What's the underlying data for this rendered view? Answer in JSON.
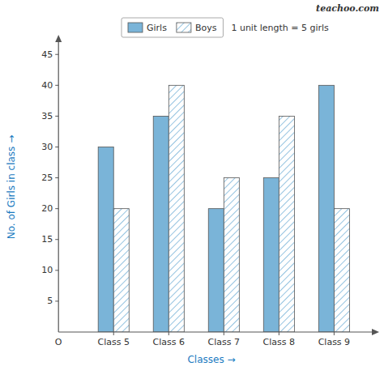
{
  "chart_data": {
    "type": "bar",
    "categories": [
      "Class 5",
      "Class 6",
      "Class 7",
      "Class 8",
      "Class 9"
    ],
    "series": [
      {
        "name": "Girls",
        "color": "#7ab4d8",
        "values": [
          30,
          35,
          20,
          25,
          40
        ]
      },
      {
        "name": "Boys",
        "color": "#ffffff",
        "values": [
          20,
          40,
          25,
          35,
          20
        ]
      }
    ],
    "x_label": "Classes →",
    "y_label": "No. of Girls in class →",
    "ylim": [
      0,
      47
    ],
    "yticks": [
      5,
      10,
      15,
      20,
      25,
      30,
      35,
      40,
      45
    ],
    "grid": false,
    "legend": "top",
    "annotations": [
      "1 unit length = 5 girls",
      "O",
      "teachoo.com"
    ]
  }
}
